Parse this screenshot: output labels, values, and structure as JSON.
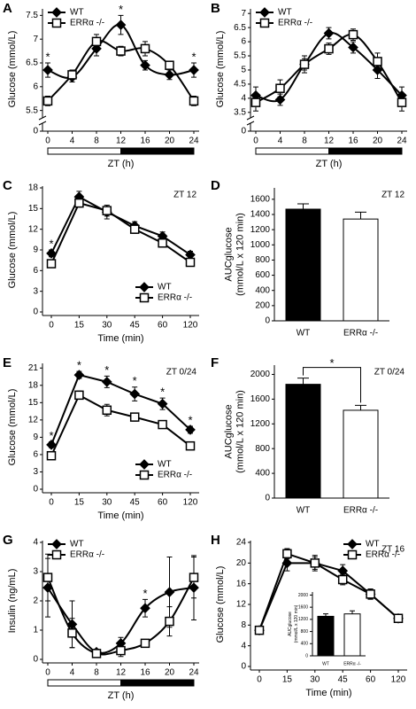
{
  "chart_data": [
    {
      "type": "line",
      "label": "A",
      "smooth": true,
      "legend": "upper left",
      "xlabel": "ZT (h)",
      "ylabel": "Glucose (mmol/L)",
      "x": [
        0,
        4,
        8,
        12,
        16,
        20,
        24
      ],
      "xlim": [
        0,
        24
      ],
      "xticks": [
        0,
        4,
        8,
        12,
        16,
        20,
        24
      ],
      "ylim": [
        5.4,
        7.6
      ],
      "yticks": [
        5.5,
        6,
        6.5,
        7,
        7.5
      ],
      "ybreak": 0,
      "dark_phase": [
        12,
        24
      ],
      "series": [
        {
          "name": "WT",
          "marker": "diamond",
          "color": "#000000",
          "values": [
            6.35,
            6.2,
            6.8,
            7.3,
            6.45,
            6.25,
            6.35
          ],
          "errors": [
            0.15,
            0.1,
            0.15,
            0.2,
            0.1,
            0.1,
            0.15
          ]
        },
        {
          "name": "ERRα -/-",
          "marker": "square",
          "color": "#ffffff",
          "values": [
            5.7,
            6.25,
            6.95,
            6.75,
            6.8,
            6.45,
            5.7
          ],
          "errors": [
            0.1,
            0.1,
            0.15,
            0.1,
            0.15,
            0.05,
            0.1
          ]
        }
      ],
      "significance": [
        "*",
        null,
        null,
        "*",
        null,
        null,
        "*"
      ]
    },
    {
      "type": "line",
      "label": "B",
      "smooth": true,
      "legend": "upper left",
      "xlabel": "ZT (h)",
      "ylabel": "Glucose (mmol/L)",
      "x": [
        0,
        4,
        8,
        12,
        16,
        20,
        24
      ],
      "xlim": [
        0,
        24
      ],
      "xticks": [
        0,
        4,
        8,
        12,
        16,
        20,
        24
      ],
      "ylim": [
        3.4,
        7.1
      ],
      "yticks": [
        3.5,
        4,
        4.5,
        5,
        5.5,
        6,
        6.5,
        7
      ],
      "ybreak": 0,
      "dark_phase": [
        12,
        24
      ],
      "series": [
        {
          "name": "WT",
          "marker": "diamond",
          "color": "#000000",
          "values": [
            4.1,
            3.95,
            5.2,
            6.3,
            5.8,
            5.0,
            4.1
          ],
          "errors": [
            0.3,
            0.2,
            0.2,
            0.2,
            0.2,
            0.3,
            0.3
          ]
        },
        {
          "name": "ERRα -/-",
          "marker": "square",
          "color": "#ffffff",
          "values": [
            3.85,
            4.35,
            5.2,
            5.75,
            6.25,
            5.3,
            3.85
          ],
          "errors": [
            0.3,
            0.3,
            0.3,
            0.2,
            0.2,
            0.3,
            0.3
          ]
        }
      ]
    },
    {
      "type": "line",
      "label": "C",
      "annotation": "ZT 12",
      "legend": "lower right",
      "xlabel": "Time (min)",
      "ylabel": "Glucose (mmol/L)",
      "categories": [
        "0",
        "15",
        "30",
        "45",
        "60",
        "120"
      ],
      "ylim": [
        0,
        18
      ],
      "yticks": [
        0,
        3,
        6,
        9,
        12,
        15,
        18
      ],
      "series": [
        {
          "name": "WT",
          "marker": "diamond",
          "color": "#000000",
          "values": [
            8.5,
            16.7,
            14.5,
            12.5,
            11,
            8.3
          ],
          "errors": [
            0.5,
            0.8,
            1,
            0.6,
            0.6,
            0.5
          ]
        },
        {
          "name": "ERRα -/-",
          "marker": "square",
          "color": "#ffffff",
          "values": [
            7,
            15.8,
            14.7,
            12,
            10,
            7.2
          ],
          "errors": [
            0.4,
            0.6,
            0.8,
            0.6,
            0.6,
            0.4
          ]
        }
      ],
      "significance": [
        "*",
        null,
        null,
        null,
        null,
        null
      ]
    },
    {
      "type": "bar",
      "label": "D",
      "annotation": "ZT 12",
      "ylabel": [
        "AUCglucose",
        "(mmol/L x 120 min)"
      ],
      "categories": [
        "WT",
        "ERRα -/-"
      ],
      "values": [
        1470,
        1340
      ],
      "errors": [
        70,
        90
      ],
      "colors": [
        "#000000",
        "#ffffff"
      ],
      "ylim": [
        0,
        1750
      ],
      "yticks": [
        0,
        200,
        400,
        600,
        800,
        1000,
        1200,
        1400,
        1600
      ]
    },
    {
      "type": "line",
      "label": "E",
      "annotation": "ZT 0/24",
      "legend": "lower right",
      "xlabel": "Time (min)",
      "ylabel": "Glucose (mmol/L)",
      "categories": [
        "0",
        "15",
        "30",
        "45",
        "60",
        "120"
      ],
      "ylim": [
        0,
        21.5
      ],
      "yticks": [
        0,
        3,
        6,
        9,
        12,
        15,
        18,
        21
      ],
      "series": [
        {
          "name": "WT",
          "marker": "diamond",
          "color": "#000000",
          "values": [
            7.7,
            19.8,
            18.6,
            16.5,
            14.8,
            10.3
          ],
          "errors": [
            0.5,
            0.6,
            1,
            1.2,
            1,
            0.6
          ]
        },
        {
          "name": "ERRα -/-",
          "marker": "square",
          "color": "#ffffff",
          "values": [
            5.8,
            16.3,
            13.7,
            12.5,
            11.2,
            7.5
          ],
          "errors": [
            0.5,
            0.7,
            1,
            0.7,
            0.5,
            0.5
          ]
        }
      ],
      "significance": [
        "*",
        "*",
        "*",
        "*",
        "*",
        "*"
      ]
    },
    {
      "type": "bar",
      "label": "F",
      "annotation": "ZT 0/24",
      "ylabel": [
        "AUCglucose",
        "(mmol/L x 120 min)"
      ],
      "categories": [
        "WT",
        "ERRα -/-"
      ],
      "values": [
        1840,
        1420
      ],
      "errors": [
        100,
        80
      ],
      "colors": [
        "#000000",
        "#ffffff"
      ],
      "ylim": [
        0,
        2150
      ],
      "yticks": [
        0,
        400,
        800,
        1200,
        1600,
        2000
      ],
      "significance": "*"
    },
    {
      "type": "line",
      "label": "G",
      "smooth": true,
      "legend": "upper left",
      "xlabel": "ZT (h)",
      "ylabel": "Insulin (ng/mL)",
      "x": [
        0,
        4,
        8,
        12,
        16,
        20,
        24
      ],
      "xlim": [
        0,
        24
      ],
      "xticks": [
        0,
        4,
        8,
        12,
        16,
        20,
        24
      ],
      "ylim": [
        0,
        4
      ],
      "yticks": [
        0,
        1,
        2,
        3,
        4
      ],
      "dark_phase": [
        12,
        24
      ],
      "series": [
        {
          "name": "WT",
          "marker": "diamond",
          "color": "#000000",
          "values": [
            2.45,
            1.2,
            0.25,
            0.55,
            1.75,
            2.3,
            2.45
          ],
          "errors": [
            1,
            0.8,
            0.1,
            0.2,
            0.3,
            1.2,
            1.1
          ]
        },
        {
          "name": "ERRα -/-",
          "marker": "square",
          "color": "#ffffff",
          "values": [
            2.8,
            0.9,
            0.2,
            0.3,
            0.55,
            1.3,
            2.8
          ],
          "errors": [
            0.8,
            0.5,
            0.1,
            0.2,
            0.1,
            0.5,
            0.7
          ]
        }
      ],
      "significance": [
        null,
        null,
        null,
        null,
        "*",
        null,
        null
      ]
    },
    {
      "type": "line",
      "label": "H",
      "annotation": "ZT 16",
      "legend": "upper right",
      "xlabel": "Time (min)",
      "ylabel": "Glucose (mmol/L)",
      "categories": [
        "0",
        "15",
        "30",
        "45",
        "60",
        "120"
      ],
      "ylim": [
        0,
        24
      ],
      "yticks": [
        0,
        4,
        8,
        12,
        16,
        20,
        24
      ],
      "series": [
        {
          "name": "WT",
          "marker": "diamond",
          "color": "#000000",
          "values": [
            7,
            20,
            20,
            18.5,
            14,
            9.3
          ],
          "errors": [
            0.5,
            1.5,
            1.5,
            1.2,
            1,
            0.5
          ]
        },
        {
          "name": "ERRα -/-",
          "marker": "square",
          "color": "#ffffff",
          "values": [
            7,
            21.8,
            20,
            16.8,
            14,
            9.3
          ],
          "errors": [
            0.5,
            1,
            1.2,
            1,
            1,
            0.5
          ]
        }
      ],
      "inset": {
        "type": "bar",
        "ylabel": [
          "AUCglucose",
          "(mmol/L x 120 min)"
        ],
        "categories": [
          "WT",
          "ERRα -/-"
        ],
        "values": [
          1300,
          1380
        ],
        "errors": [
          80,
          100
        ],
        "colors": [
          "#000000",
          "#ffffff"
        ],
        "ylim": [
          0,
          2100
        ],
        "yticks": [
          0,
          400,
          800,
          1200,
          1600,
          2000
        ]
      }
    }
  ]
}
